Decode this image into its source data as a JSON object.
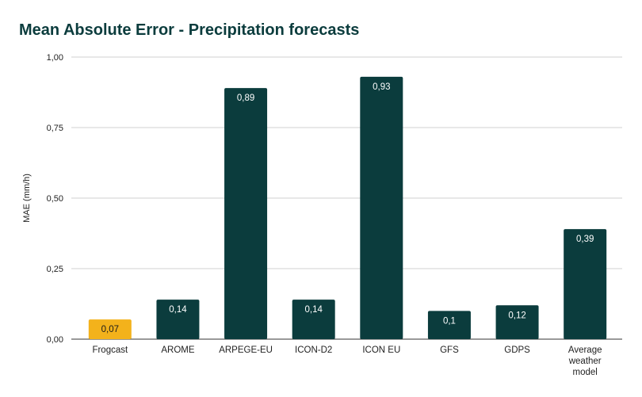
{
  "chart_data": {
    "type": "bar",
    "title": "Mean Absolute Error - Precipitation forecasts",
    "xlabel": "",
    "ylabel": "MAE (mm/h)",
    "ylim": [
      0,
      1
    ],
    "yticks": [
      "0,00",
      "0,25",
      "0,50",
      "0,75",
      "1,00"
    ],
    "ytick_values": [
      0,
      0.25,
      0.5,
      0.75,
      1
    ],
    "grid": true,
    "categories": [
      "Frogcast",
      "AROME",
      "ARPEGE-EU",
      "ICON-D2",
      "ICON EU",
      "GFS",
      "GDPS",
      "Average weather model"
    ],
    "values": [
      0.07,
      0.14,
      0.89,
      0.14,
      0.93,
      0.1,
      0.12,
      0.39
    ],
    "data_labels": [
      "0,07",
      "0,14",
      "0,89",
      "0,14",
      "0,93",
      "0,1",
      "0,12",
      "0,39"
    ],
    "colors": {
      "highlight": "#f3b21b",
      "default": "#0b3c3d",
      "title": "#0b3c3d",
      "label_on_dark": "#ffffff",
      "label_on_highlight": "#1a1a1a"
    },
    "highlight_index": 0
  }
}
